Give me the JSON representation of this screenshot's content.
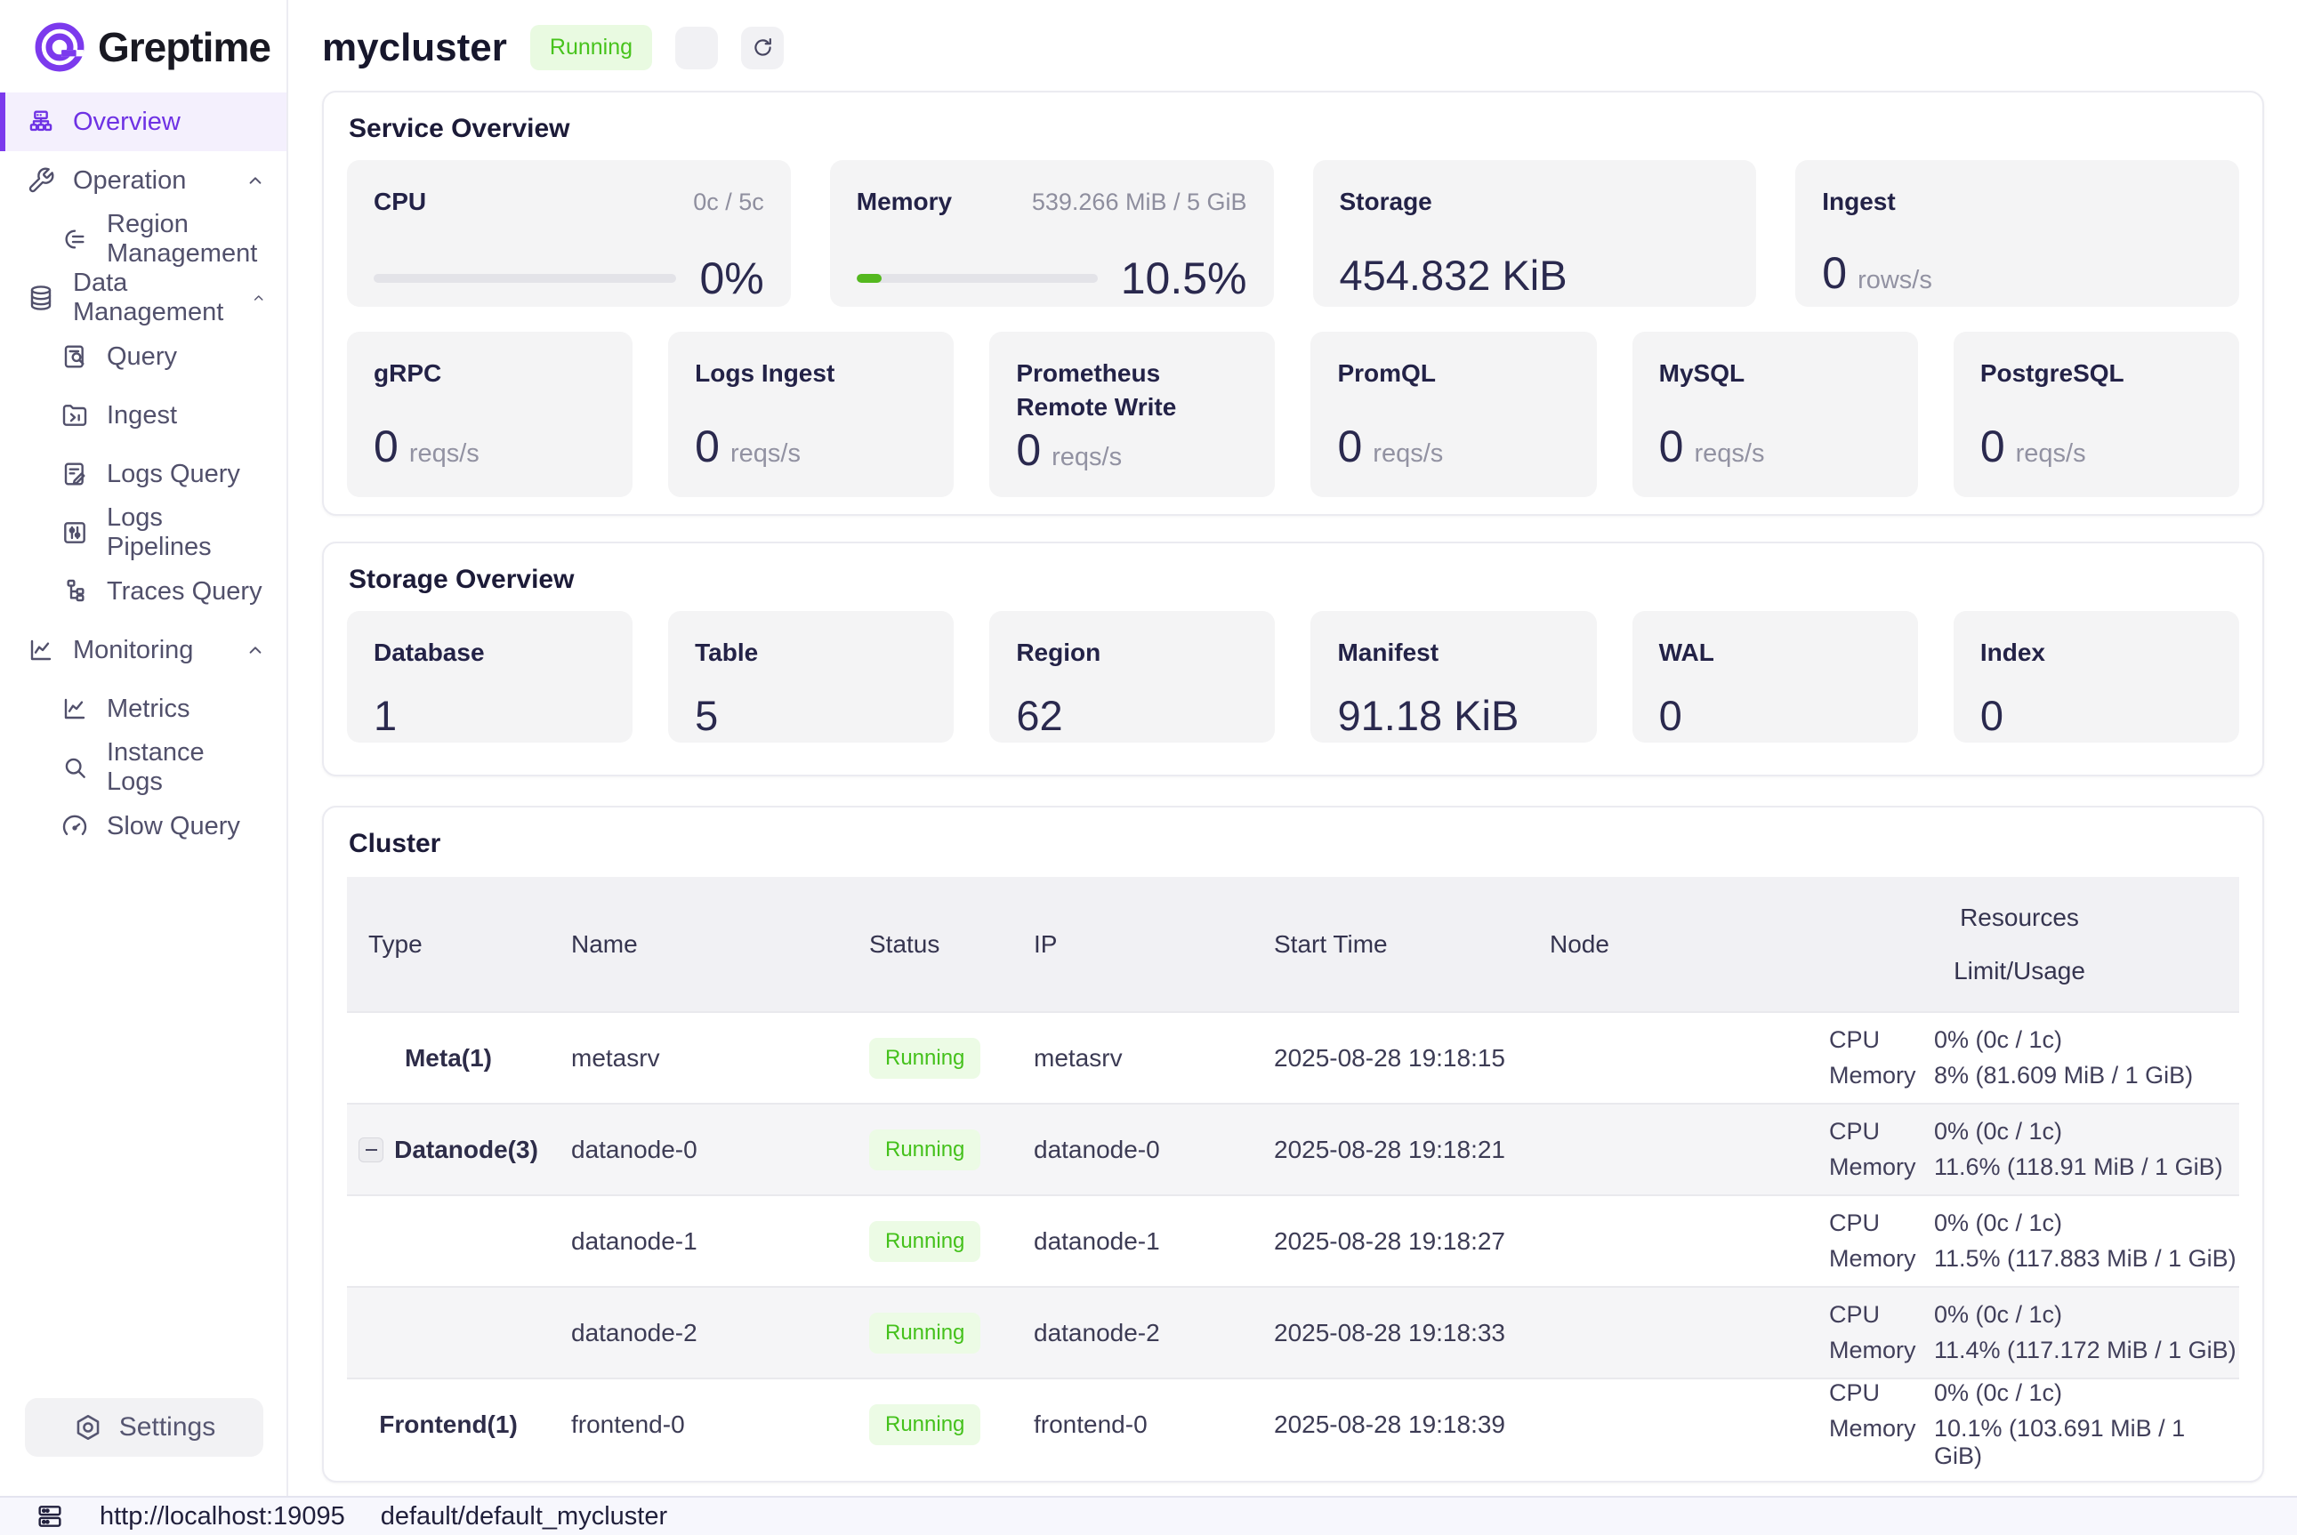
{
  "colors": {
    "accent_purple": "#7c3aed",
    "status_green_text": "#47c31c",
    "status_green_bg": "#e9fae1",
    "progress_green": "#54b81f"
  },
  "sidebar": {
    "logo_text": "Greptime",
    "items": [
      {
        "label": "Overview",
        "icon": "cluster-icon",
        "active": true
      },
      {
        "label": "Operation",
        "icon": "wrench-icon",
        "expanded": true
      },
      {
        "label": "Region Management",
        "icon": "region-icon",
        "sub": true
      },
      {
        "label": "Data Management",
        "icon": "database-icon",
        "expanded": true
      },
      {
        "label": "Query",
        "icon": "doc-search-icon",
        "sub": true
      },
      {
        "label": "Ingest",
        "icon": "folder-arrow-icon",
        "sub": true
      },
      {
        "label": "Logs Query",
        "icon": "doc-pencil-icon",
        "sub": true
      },
      {
        "label": "Logs Pipelines",
        "icon": "sliders-icon",
        "sub": true
      },
      {
        "label": "Traces Query",
        "icon": "tree-icon",
        "sub": true
      },
      {
        "label": "Monitoring",
        "icon": "line-chart-icon",
        "expanded": true
      },
      {
        "label": "Metrics",
        "icon": "line-chart-icon",
        "sub": true
      },
      {
        "label": "Instance Logs",
        "icon": "magnifier-icon",
        "sub": true
      },
      {
        "label": "Slow Query",
        "icon": "gauge-icon",
        "sub": true
      }
    ],
    "settings_label": "Settings"
  },
  "header": {
    "title": "mycluster",
    "status": "Running"
  },
  "service_overview": {
    "title": "Service Overview",
    "cpu": {
      "label": "CPU",
      "limit": "0c / 5c",
      "percent": "0%",
      "percent_value": 0
    },
    "memory": {
      "label": "Memory",
      "limit": "539.266 MiB / 5 GiB",
      "percent": "10.5%",
      "percent_value": 10.5
    },
    "storage": {
      "label": "Storage",
      "value": "454.832 KiB"
    },
    "ingest": {
      "label": "Ingest",
      "value": "0",
      "unit": "rows/s"
    },
    "rates": [
      {
        "label": "gRPC",
        "value": "0",
        "unit": "reqs/s"
      },
      {
        "label": "Logs Ingest",
        "value": "0",
        "unit": "reqs/s"
      },
      {
        "label": "Prometheus Remote Write",
        "value": "0",
        "unit": "reqs/s"
      },
      {
        "label": "PromQL",
        "value": "0",
        "unit": "reqs/s"
      },
      {
        "label": "MySQL",
        "value": "0",
        "unit": "reqs/s"
      },
      {
        "label": "PostgreSQL",
        "value": "0",
        "unit": "reqs/s"
      }
    ]
  },
  "storage_overview": {
    "title": "Storage Overview",
    "cards": [
      {
        "label": "Database",
        "value": "1"
      },
      {
        "label": "Table",
        "value": "5"
      },
      {
        "label": "Region",
        "value": "62"
      },
      {
        "label": "Manifest",
        "value": "91.18 KiB"
      },
      {
        "label": "WAL",
        "value": "0"
      },
      {
        "label": "Index",
        "value": "0"
      }
    ]
  },
  "cluster": {
    "title": "Cluster",
    "columns": {
      "type": "Type",
      "name": "Name",
      "status": "Status",
      "ip": "IP",
      "start_time": "Start Time",
      "node": "Node",
      "resources": "Resources",
      "limit_usage": "Limit/Usage"
    },
    "rows": [
      {
        "type": "Meta(1)",
        "name": "metasrv",
        "status": "Running",
        "ip": "metasrv",
        "start_time": "2025-08-28 19:18:15",
        "node": "",
        "cpu_label": "CPU",
        "cpu_value": "0% (0c / 1c)",
        "mem_label": "Memory",
        "mem_value": "8% (81.609 MiB / 1 GiB)"
      },
      {
        "type": "Datanode(3)",
        "name": "datanode-0",
        "status": "Running",
        "ip": "datanode-0",
        "start_time": "2025-08-28 19:18:21",
        "node": "",
        "cpu_label": "CPU",
        "cpu_value": "0% (0c / 1c)",
        "mem_label": "Memory",
        "mem_value": "11.6% (118.91 MiB / 1 GiB)"
      },
      {
        "type": "",
        "name": "datanode-1",
        "status": "Running",
        "ip": "datanode-1",
        "start_time": "2025-08-28 19:18:27",
        "node": "",
        "cpu_label": "CPU",
        "cpu_value": "0% (0c / 1c)",
        "mem_label": "Memory",
        "mem_value": "11.5% (117.883 MiB / 1 GiB)"
      },
      {
        "type": "",
        "name": "datanode-2",
        "status": "Running",
        "ip": "datanode-2",
        "start_time": "2025-08-28 19:18:33",
        "node": "",
        "cpu_label": "CPU",
        "cpu_value": "0% (0c / 1c)",
        "mem_label": "Memory",
        "mem_value": "11.4% (117.172 MiB / 1 GiB)"
      },
      {
        "type": "Frontend(1)",
        "name": "frontend-0",
        "status": "Running",
        "ip": "frontend-0",
        "start_time": "2025-08-28 19:18:39",
        "node": "",
        "cpu_label": "CPU",
        "cpu_value": "0% (0c / 1c)",
        "mem_label": "Memory",
        "mem_value": "10.1% (103.691 MiB / 1 GiB)"
      }
    ]
  },
  "statusbar": {
    "url": "http://localhost:19095",
    "database": "default/default_mycluster"
  }
}
